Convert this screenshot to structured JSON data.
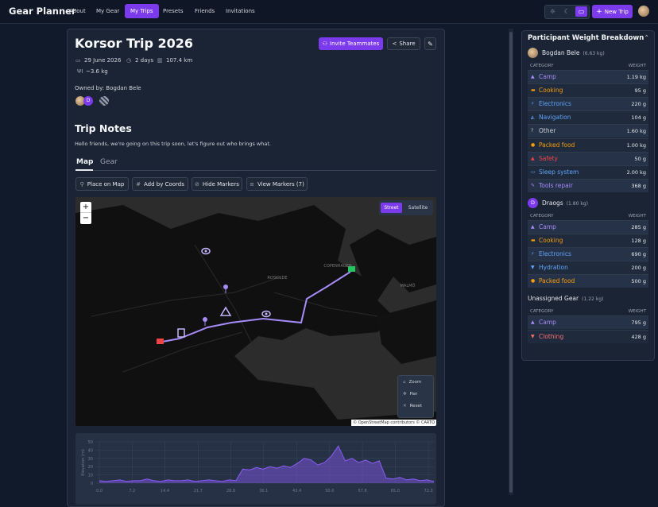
{
  "nav": {
    "brand": "Gear Planner",
    "links": [
      "About",
      "My Gear",
      "My Trips",
      "Presets",
      "Friends",
      "Invitations"
    ],
    "new_trip": "New Trip"
  },
  "trip": {
    "title": "Korsor Trip 2026",
    "invite": "Invite Teammates",
    "share": "Share",
    "date": "29 June 2026",
    "duration": "2 days",
    "distance": "107.4 km",
    "weight": "~3.6 kg",
    "owner": "Owned by: Bogdan Bele",
    "member_initial": "D",
    "notes_title": "Trip Notes",
    "notes": "Hello friends, we're going on this trip soon, let's figure out who brings what.",
    "tabs": [
      "Map",
      "Gear"
    ],
    "actions": [
      "Place on Map",
      "Add by Coords",
      "Hide Markers",
      "View Markers (7)"
    ]
  },
  "map": {
    "zoom_in": "+",
    "zoom_out": "−",
    "layers": [
      "Street",
      "Satellite"
    ],
    "controls": [
      "Zoom",
      "Pan",
      "Reset"
    ],
    "attribution": "© OpenStreetMap contributors © CARTO",
    "places": [
      "COPENHAGEN",
      "ROSKILDE",
      "MALMÖ"
    ]
  },
  "elevation_chart": {
    "type": "line",
    "y_label": "Elevation (m)",
    "color": "#8b5cf6",
    "x": [
      0,
      1.5,
      3,
      4.5,
      6,
      7.5,
      9,
      10.5,
      12,
      13.5,
      15,
      16.5,
      18,
      19.5,
      21,
      22.5,
      24,
      25.5,
      27,
      28.5,
      30,
      31.5,
      33,
      34.5,
      36,
      37.5,
      39,
      40.5,
      42,
      43.5,
      45,
      46.5,
      48,
      49.5,
      51,
      52.5,
      54,
      55.5,
      57,
      58.5,
      60,
      61.5,
      63,
      64.5,
      66,
      67.5,
      69,
      70.5,
      72,
      73.5
    ],
    "values": [
      3,
      2,
      3,
      4,
      2,
      3,
      3,
      5,
      3,
      2,
      4,
      3,
      3,
      4,
      2,
      3,
      4,
      3,
      2,
      4,
      3,
      17,
      16,
      19,
      17,
      20,
      18,
      21,
      19,
      24,
      30,
      28,
      22,
      25,
      33,
      45,
      27,
      30,
      25,
      28,
      24,
      27,
      6,
      5,
      7,
      4,
      5,
      3,
      4,
      2
    ],
    "xlim": [
      -0.7,
      73.5
    ],
    "ylim": [
      0,
      50
    ],
    "yticks": [
      0,
      10,
      20,
      30,
      40,
      50
    ],
    "xticks": [
      {
        "value": 0,
        "label": "0.0"
      },
      7.2,
      14.4,
      21.7,
      28.9,
      36.1,
      43.4,
      50.6,
      57.8,
      {
        "value": 65,
        "label": "65.0"
      },
      72.3
    ],
    "grid": true
  },
  "breakdown": {
    "title": "Participant Weight Breakdown",
    "column_headers": [
      "CATEGORY",
      "WEIGHT"
    ],
    "groups": [
      {
        "name": "Bogdan Bele",
        "total": "(6.63 kg)",
        "rows": [
          {
            "category": "Camp",
            "weight": "1.19 kg",
            "color": "#a78bfa"
          },
          {
            "category": "Cooking",
            "weight": "95 g",
            "color": "#f59e0b"
          },
          {
            "category": "Electronics",
            "weight": "220 g",
            "color": "#60a5fa"
          },
          {
            "category": "Navigation",
            "weight": "104 g",
            "color": "#60a5fa"
          },
          {
            "category": "Other",
            "weight": "1.60 kg",
            "color": "#d1d5db"
          },
          {
            "category": "Packed food",
            "weight": "1.00 kg",
            "color": "#f59e0b"
          },
          {
            "category": "Safety",
            "weight": "50 g",
            "color": "#ef4444"
          },
          {
            "category": "Sleep system",
            "weight": "2.00 kg",
            "color": "#60a5fa"
          },
          {
            "category": "Tools repair",
            "weight": "368 g",
            "color": "#a78bfa"
          }
        ]
      },
      {
        "name": "Draogs",
        "initial": "D",
        "total": "(1.80 kg)",
        "rows": [
          {
            "category": "Camp",
            "weight": "285 g",
            "color": "#a78bfa"
          },
          {
            "category": "Cooking",
            "weight": "128 g",
            "color": "#f59e0b"
          },
          {
            "category": "Electronics",
            "weight": "690 g",
            "color": "#60a5fa"
          },
          {
            "category": "Hydration",
            "weight": "200 g",
            "color": "#60a5fa"
          },
          {
            "category": "Packed food",
            "weight": "500 g",
            "color": "#f59e0b"
          }
        ]
      },
      {
        "name": "Unassigned Gear",
        "total": "(1.22 kg)",
        "rows": [
          {
            "category": "Camp",
            "weight": "795 g",
            "color": "#a78bfa"
          },
          {
            "category": "Clothing",
            "weight": "428 g",
            "color": "#f87171"
          }
        ]
      }
    ]
  }
}
